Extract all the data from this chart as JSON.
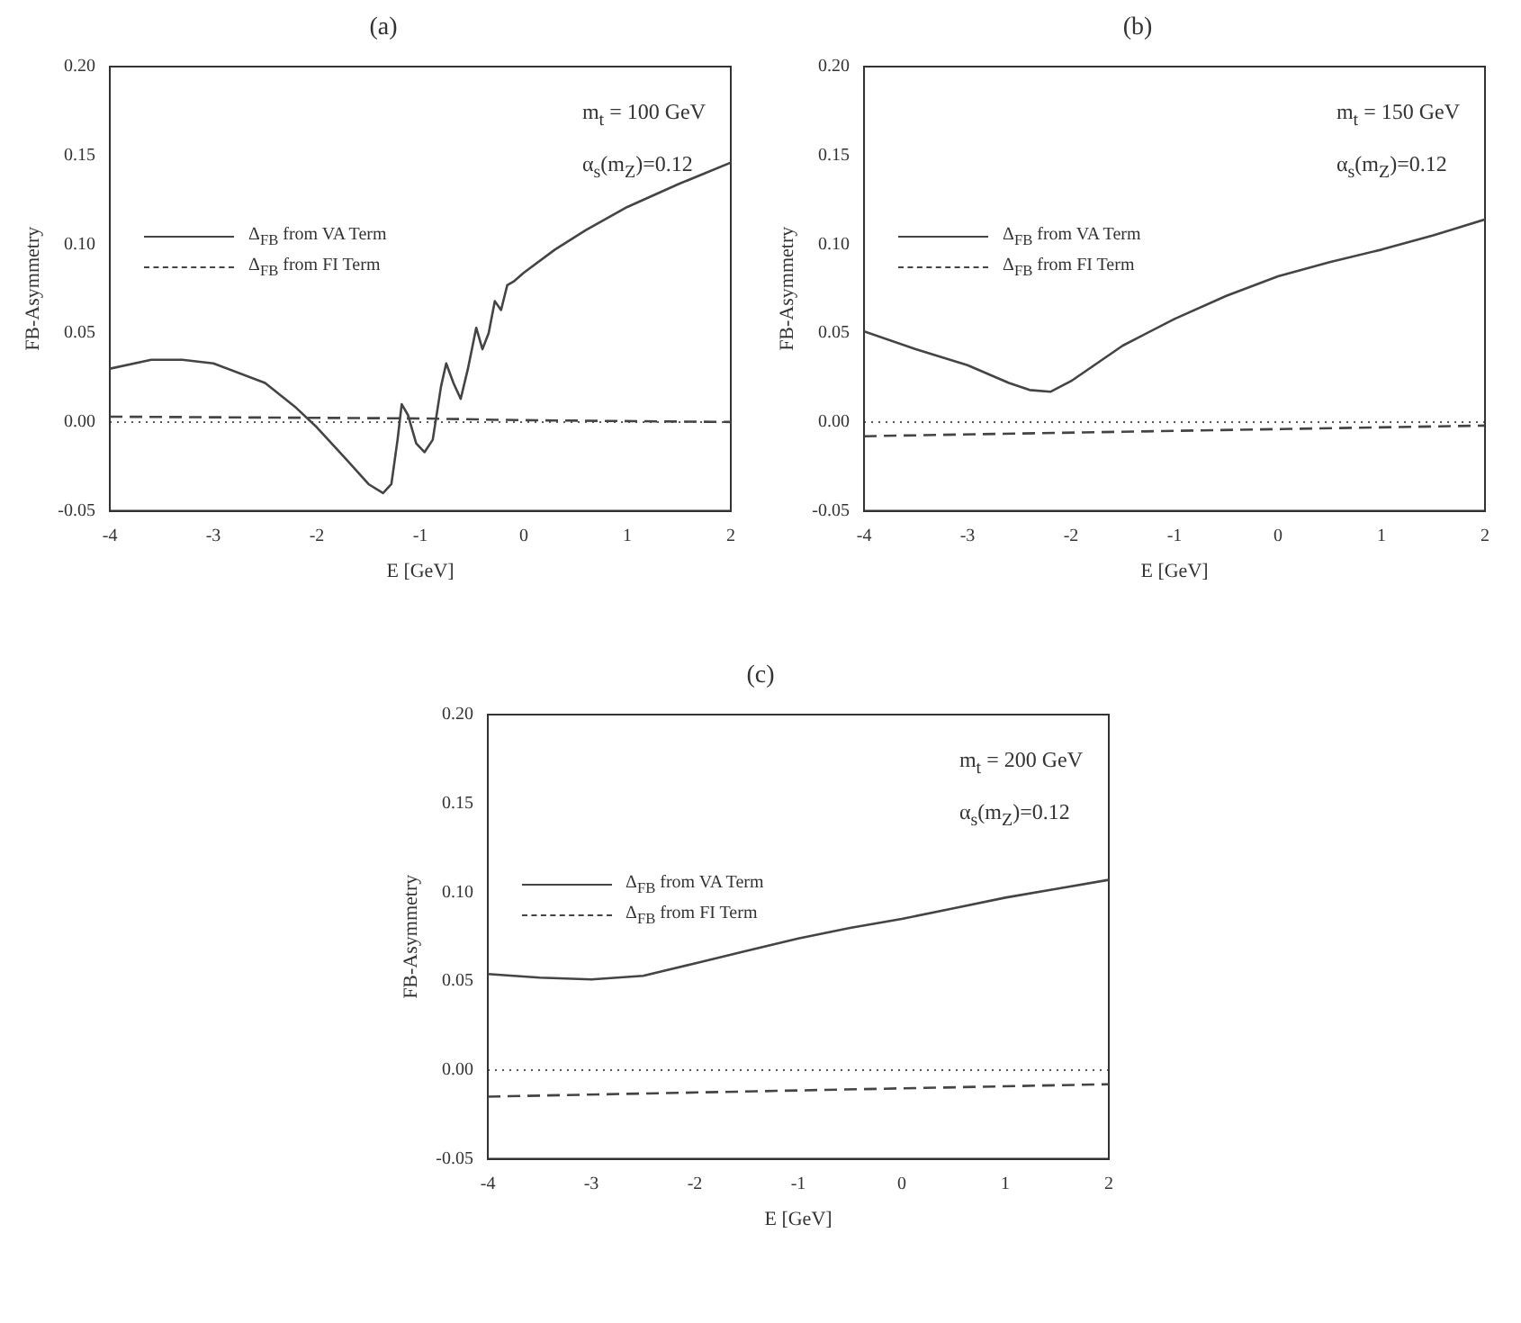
{
  "chart_data": [
    {
      "type": "line",
      "title": "(a)",
      "xlabel": "E [GeV]",
      "ylabel": "FB-Asymmetry",
      "xlim": [
        -4,
        2
      ],
      "xticks": [
        -4,
        -3,
        -2,
        -1,
        0,
        1,
        2
      ],
      "ylim": [
        -0.05,
        0.2
      ],
      "yticks": [
        -0.05,
        {
          "value": 0,
          "label": "0.00"
        },
        0.05,
        {
          "value": 0.1,
          "label": "0.10"
        },
        0.15,
        {
          "value": 0.2,
          "label": "0.20"
        }
      ],
      "grid": false,
      "legend": "top left",
      "marker": "none",
      "annotations": [
        "m$_{t}$ = 100 GeV",
        "α$_{s}$(m$_{Z}$)=0.12"
      ],
      "ref_lines": [
        {
          "axis": "y",
          "value": 0,
          "line_style": "dotted",
          "color": "#555555"
        }
      ],
      "series": [
        {
          "name": "Δ$_{FB}$ from VA Term",
          "color": "#444444",
          "line_style": "solid",
          "x": [
            -4,
            -3.6,
            -3.3,
            -3,
            -2.5,
            -2.2,
            -2,
            -1.7,
            -1.5,
            -1.36,
            -1.28,
            -1.22,
            -1.18,
            -1.12,
            -1.04,
            -0.96,
            -0.88,
            -0.8,
            -0.75,
            -0.68,
            -0.61,
            -0.54,
            -0.46,
            -0.4,
            -0.34,
            -0.28,
            -0.22,
            -0.16,
            -0.1,
            0,
            0.3,
            0.6,
            1,
            1.5,
            2
          ],
          "values": [
            0.03,
            0.035,
            0.035,
            0.033,
            0.022,
            0.008,
            -0.003,
            -0.022,
            -0.035,
            -0.04,
            -0.035,
            -0.01,
            0.01,
            0.004,
            -0.012,
            -0.017,
            -0.01,
            0.02,
            0.033,
            0.022,
            0.013,
            0.03,
            0.053,
            0.041,
            0.05,
            0.068,
            0.063,
            0.077,
            0.079,
            0.084,
            0.097,
            0.108,
            0.121,
            0.134,
            0.146
          ]
        },
        {
          "name": "Δ$_{FB}$ from FI Term",
          "color": "#444444",
          "line_style": "dashed",
          "x": [
            -4,
            -1,
            0,
            2
          ],
          "values": [
            0.003,
            0.002,
            0.001,
            0.0
          ]
        }
      ]
    },
    {
      "type": "line",
      "title": "(b)",
      "xlabel": "E [GeV]",
      "ylabel": "FB-Asymmetry",
      "xlim": [
        -4,
        2
      ],
      "xticks": [
        -4,
        -3,
        -2,
        -1,
        0,
        1,
        2
      ],
      "ylim": [
        -0.05,
        0.2
      ],
      "yticks": [
        -0.05,
        {
          "value": 0,
          "label": "0.00"
        },
        0.05,
        {
          "value": 0.1,
          "label": "0.10"
        },
        0.15,
        {
          "value": 0.2,
          "label": "0.20"
        }
      ],
      "grid": false,
      "legend": "top left",
      "marker": "none",
      "annotations": [
        "m$_{t}$ = 150 GeV",
        "α$_{s}$(m$_{Z}$)=0.12"
      ],
      "ref_lines": [
        {
          "axis": "y",
          "value": 0,
          "line_style": "dotted",
          "color": "#555555"
        }
      ],
      "series": [
        {
          "name": "Δ$_{FB}$ from VA Term",
          "color": "#444444",
          "line_style": "solid",
          "x": [
            -4,
            -3.5,
            -3,
            -2.6,
            -2.4,
            -2.2,
            -2,
            -1.5,
            -1,
            -0.5,
            0,
            0.5,
            1,
            1.5,
            2
          ],
          "values": [
            0.051,
            0.041,
            0.032,
            0.022,
            0.018,
            0.017,
            0.023,
            0.043,
            0.058,
            0.071,
            0.082,
            0.09,
            0.097,
            0.105,
            0.114
          ]
        },
        {
          "name": "Δ$_{FB}$ from FI Term",
          "color": "#444444",
          "line_style": "dashed",
          "x": [
            -4,
            2
          ],
          "values": [
            -0.008,
            -0.002
          ]
        }
      ]
    },
    {
      "type": "line",
      "title": "(c)",
      "xlabel": "E [GeV]",
      "ylabel": "FB-Asymmetry",
      "xlim": [
        -4,
        2
      ],
      "xticks": [
        -4,
        -3,
        -2,
        -1,
        0,
        1,
        2
      ],
      "ylim": [
        -0.05,
        0.2
      ],
      "yticks": [
        -0.05,
        {
          "value": 0,
          "label": "0.00"
        },
        0.05,
        {
          "value": 0.1,
          "label": "0.10"
        },
        0.15,
        {
          "value": 0.2,
          "label": "0.20"
        }
      ],
      "grid": false,
      "legend": "top left",
      "marker": "none",
      "annotations": [
        "m$_{t}$ = 200 GeV",
        "α$_{s}$(m$_{Z}$)=0.12"
      ],
      "ref_lines": [
        {
          "axis": "y",
          "value": 0,
          "line_style": "dotted",
          "color": "#555555"
        }
      ],
      "series": [
        {
          "name": "Δ$_{FB}$ from VA Term",
          "color": "#444444",
          "line_style": "solid",
          "x": [
            -4,
            -3.5,
            -3,
            -2.5,
            -2,
            -1.5,
            -1,
            -0.5,
            0,
            0.5,
            1,
            1.5,
            2
          ],
          "values": [
            0.054,
            0.052,
            0.051,
            0.053,
            0.06,
            0.067,
            0.074,
            0.08,
            0.085,
            0.091,
            0.097,
            0.102,
            0.107
          ]
        },
        {
          "name": "Δ$_{FB}$ from FI Term",
          "color": "#444444",
          "line_style": "dashed",
          "x": [
            -4,
            2
          ],
          "values": [
            -0.015,
            -0.008
          ]
        }
      ]
    }
  ]
}
